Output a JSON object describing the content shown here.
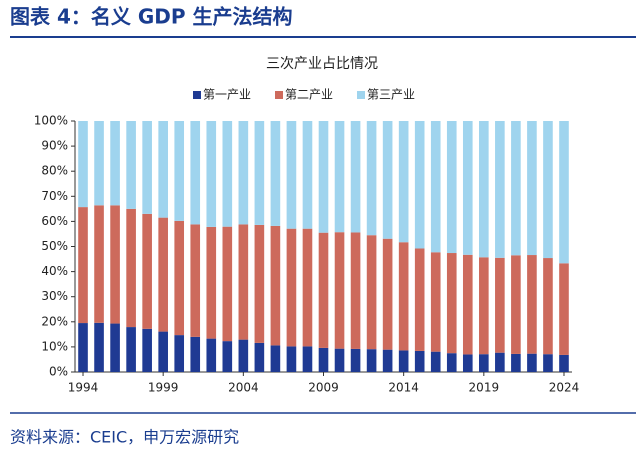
{
  "header": {
    "title": "图表 4：名义 GDP 生产法结构"
  },
  "chart_data": {
    "type": "stacked_bar",
    "title": "三次产业占比情况",
    "categories": [
      "1994",
      null,
      null,
      null,
      null,
      "1999",
      null,
      null,
      null,
      null,
      "2004",
      null,
      null,
      null,
      null,
      "2009",
      null,
      null,
      null,
      null,
      "2014",
      null,
      null,
      null,
      null,
      "2019",
      null,
      null,
      null,
      null,
      "2024"
    ],
    "series": [
      {
        "name": "第一产业",
        "color": "#1f3a93",
        "values": [
          19.5,
          19.6,
          19.3,
          17.9,
          17.2,
          16.1,
          14.7,
          14.0,
          13.3,
          12.3,
          12.9,
          11.6,
          10.6,
          10.2,
          10.2,
          9.6,
          9.3,
          9.2,
          9.1,
          8.9,
          8.6,
          8.4,
          8.1,
          7.5,
          7.0,
          7.1,
          7.7,
          7.2,
          7.3,
          7.1,
          6.8
        ]
      },
      {
        "name": "第二产业",
        "color": "#cd6a5c",
        "values": [
          46.2,
          46.8,
          47.1,
          47.1,
          45.8,
          45.4,
          45.5,
          44.8,
          44.5,
          45.6,
          45.9,
          47.0,
          47.6,
          46.9,
          46.9,
          45.9,
          46.4,
          46.4,
          45.4,
          44.2,
          43.1,
          40.8,
          39.6,
          39.9,
          39.7,
          38.6,
          37.8,
          39.3,
          39.3,
          38.3,
          36.5
        ]
      },
      {
        "name": "第三产业",
        "color": "#9fd4ee",
        "values": [
          34.3,
          33.6,
          33.6,
          35.0,
          37.0,
          38.5,
          39.8,
          41.2,
          42.2,
          42.1,
          41.2,
          41.4,
          41.8,
          42.9,
          42.9,
          44.5,
          44.3,
          44.4,
          45.5,
          46.9,
          48.3,
          50.8,
          52.3,
          52.6,
          53.3,
          54.3,
          54.5,
          53.5,
          53.4,
          54.6,
          56.7
        ]
      }
    ],
    "ylim": [
      0,
      100
    ],
    "yticks": [
      {
        "value": 0,
        "label": "0%"
      },
      {
        "value": 10,
        "label": "10%"
      },
      {
        "value": 20,
        "label": "20%"
      },
      {
        "value": 30,
        "label": "30%"
      },
      {
        "value": 40,
        "label": "40%"
      },
      {
        "value": 50,
        "label": "50%"
      },
      {
        "value": 60,
        "label": "60%"
      },
      {
        "value": 70,
        "label": "70%"
      },
      {
        "value": 80,
        "label": "80%"
      },
      {
        "value": 90,
        "label": "90%"
      },
      {
        "value": 100,
        "label": "100%"
      }
    ],
    "legend": "top"
  },
  "source": "资料来源：CEIC，申万宏源研究"
}
